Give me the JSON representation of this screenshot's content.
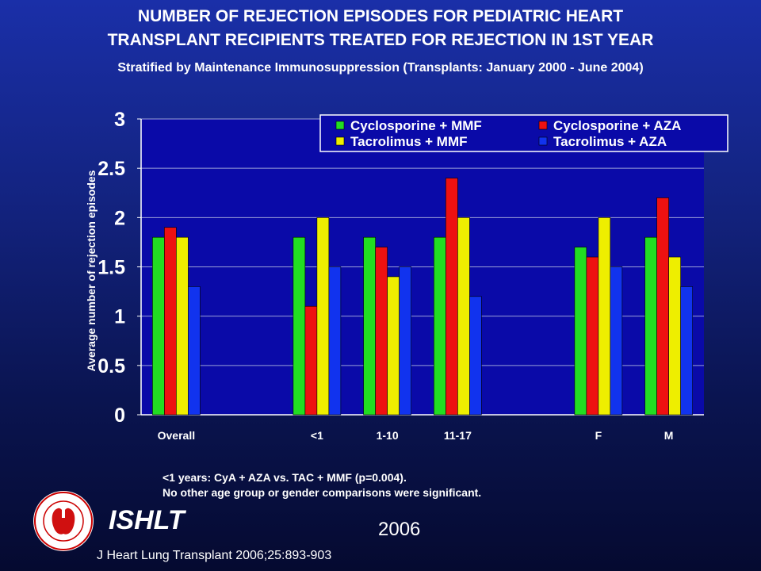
{
  "title_line1": "NUMBER OF REJECTION EPISODES FOR PEDIATRIC HEART",
  "title_line2": "TRANSPLANT RECIPIENTS TREATED FOR REJECTION IN 1ST YEAR",
  "subtitle": "Stratified by Maintenance Immunosuppression (Transplants: January 2000 - June 2004)",
  "notes": [
    "<1 years: CyA + AZA vs. TAC + MMF (p=0.004).",
    "No other age group or gender comparisons were significant."
  ],
  "branding": "ISHLT",
  "year": "2006",
  "citation": "J Heart Lung Transplant 2006;25:893-903",
  "logo_icon": "ishlt-society-seal-icon",
  "chart_data": {
    "type": "bar",
    "ylabel": "Average number of rejection episodes",
    "ylim": [
      0,
      3
    ],
    "yticks": [
      "0",
      "0.5",
      "1",
      "1.5",
      "2",
      "2.5",
      "3"
    ],
    "categories": [
      "Overall",
      "",
      "<1",
      "1-10",
      "11-17",
      "",
      "F",
      "M"
    ],
    "series": [
      {
        "name": "Cyclosporine + MMF",
        "color": "#22dd22",
        "values": [
          1.8,
          null,
          1.8,
          1.8,
          1.8,
          null,
          1.7,
          1.8
        ]
      },
      {
        "name": "Cyclosporine + AZA",
        "color": "#ee1111",
        "values": [
          1.9,
          null,
          1.1,
          1.7,
          2.4,
          null,
          1.6,
          2.2
        ]
      },
      {
        "name": "Tacrolimus + MMF",
        "color": "#eeee00",
        "values": [
          1.8,
          null,
          2.0,
          1.4,
          2.0,
          null,
          2.0,
          1.6
        ]
      },
      {
        "name": "Tacrolimus + AZA",
        "color": "#1133ee",
        "values": [
          1.3,
          null,
          1.5,
          1.5,
          1.2,
          null,
          1.5,
          1.3
        ]
      }
    ],
    "legend_position": "top-right",
    "grid": true,
    "plot_background": "#0a0aa8"
  }
}
